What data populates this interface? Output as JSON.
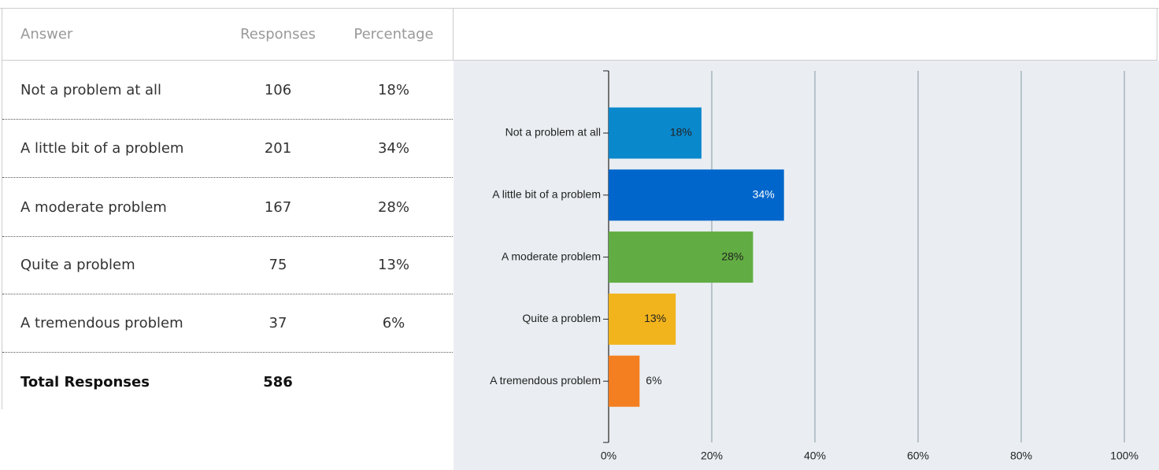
{
  "table": {
    "headers": [
      "Answer",
      "Responses",
      "Percentage"
    ],
    "rows": [
      [
        "Not a problem at all",
        106,
        "18%"
      ],
      [
        "A little bit of a problem",
        201,
        "34%"
      ],
      [
        "A moderate problem",
        167,
        "28%"
      ],
      [
        "Quite a problem",
        75,
        "13%"
      ],
      [
        "A tremendous problem",
        37,
        "6%"
      ]
    ],
    "total": [
      "Total Responses",
      586
    ]
  },
  "chart_data": {
    "type": "bar",
    "orientation": "horizontal",
    "categories": [
      "Not a problem at all",
      "A little bit of a problem",
      "A moderate problem",
      "Quite a problem",
      "A tremendous problem"
    ],
    "values": [
      18,
      34,
      28,
      13,
      6
    ],
    "value_labels": [
      "18%",
      "34%",
      "28%",
      "13%",
      "6%"
    ],
    "colors": [
      "#0a88cc",
      "#0066cc",
      "#62ad43",
      "#f2b41c",
      "#f47f20"
    ],
    "xlim": [
      0,
      100
    ],
    "xticks": [
      {
        "value": 0,
        "label": "0%"
      },
      {
        "value": 20,
        "label": "20%"
      },
      {
        "value": 40,
        "label": "40%"
      },
      {
        "value": 60,
        "label": "60%"
      },
      {
        "value": 80,
        "label": "80%"
      },
      {
        "value": 100,
        "label": "100%"
      }
    ],
    "grid": true
  }
}
